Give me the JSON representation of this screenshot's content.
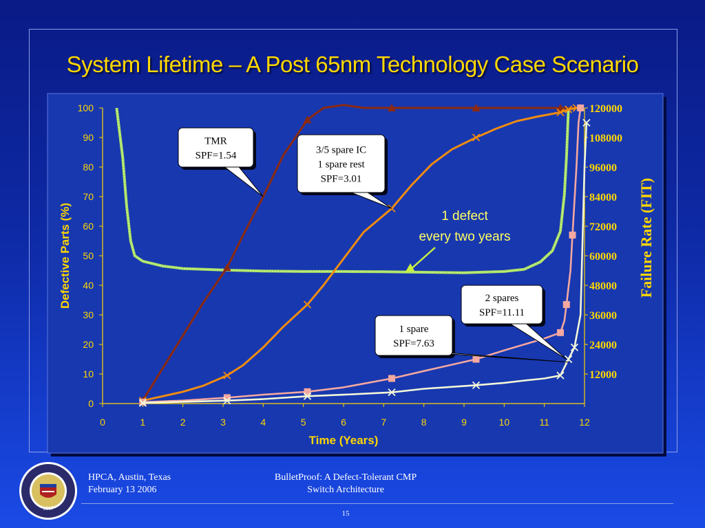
{
  "title": "System Lifetime – A Post 65nm Technology Case Scenario",
  "footer": {
    "left_line1": "HPCA, Austin, Texas",
    "left_line2": "February 13 2006",
    "center_line1": "BulletProof: A Defect-Tolerant CMP",
    "center_line2": "Switch Architecture",
    "page_number": "15"
  },
  "logo": {
    "text": "THE UNIVERSITY OF MICHIGAN",
    "year": "1817"
  },
  "colors": {
    "tmr": "#8b2a10",
    "spare35": "#f08c10",
    "spare2": "#f4a8a0",
    "spare1": "#f4f8d8",
    "failure_rate": "#a8e060",
    "axis_text": "#ffd700",
    "chart_bg": "#1838b0"
  },
  "chart_data": {
    "type": "line",
    "xlabel": "Time (Years)",
    "ylabel": "Defective Parts (%)",
    "y2label": "Failure Rate (FIT)",
    "xlim": [
      0,
      12
    ],
    "ylim": [
      0,
      100
    ],
    "y2lim": [
      0,
      120000
    ],
    "x_ticks": [
      "0",
      "1",
      "2",
      "3",
      "4",
      "5",
      "6",
      "7",
      "8",
      "9",
      "10",
      "11",
      "12"
    ],
    "y_ticks": [
      "0",
      "10",
      "20",
      "30",
      "40",
      "50",
      "60",
      "70",
      "80",
      "90",
      "100"
    ],
    "y2_ticks": [
      "12000",
      "24000",
      "36000",
      "48000",
      "60000",
      "72000",
      "84000",
      "96000",
      "108000",
      "120000"
    ],
    "series": [
      {
        "name": "TMR",
        "marker": "triangle",
        "points": [
          [
            1.0,
            1
          ],
          [
            1.5,
            12
          ],
          [
            2.0,
            23
          ],
          [
            2.5,
            34
          ],
          [
            3.1,
            46
          ],
          [
            3.5,
            57
          ],
          [
            4.0,
            70
          ],
          [
            4.5,
            84
          ],
          [
            5.1,
            96
          ],
          [
            5.5,
            100
          ],
          [
            6.0,
            101
          ],
          [
            6.5,
            100
          ],
          [
            7.2,
            100
          ],
          [
            8,
            100
          ],
          [
            9.3,
            100
          ],
          [
            10,
            100
          ],
          [
            11.4,
            100
          ],
          [
            11.8,
            100
          ]
        ],
        "marker_x": [
          1.0,
          3.1,
          5.1,
          7.2,
          9.3,
          11.4
        ]
      },
      {
        "name": "3/5 spare IC, 1 spare rest",
        "marker": "x",
        "points": [
          [
            1.0,
            1
          ],
          [
            1.5,
            2.5
          ],
          [
            2.0,
            4
          ],
          [
            2.5,
            6
          ],
          [
            3.1,
            9.5
          ],
          [
            3.5,
            13
          ],
          [
            4.0,
            19
          ],
          [
            4.5,
            26
          ],
          [
            5.1,
            33.5
          ],
          [
            5.5,
            40
          ],
          [
            6.0,
            49
          ],
          [
            6.5,
            58
          ],
          [
            7.2,
            66
          ],
          [
            7.7,
            74
          ],
          [
            8.2,
            81
          ],
          [
            8.7,
            86
          ],
          [
            9.3,
            90
          ],
          [
            9.8,
            93
          ],
          [
            10.3,
            95.5
          ],
          [
            10.8,
            97
          ],
          [
            11.4,
            98.5
          ],
          [
            11.6,
            99.5
          ],
          [
            11.8,
            100
          ]
        ],
        "marker_x": [
          1.0,
          3.1,
          5.1,
          7.2,
          9.3,
          11.4,
          11.6,
          11.8
        ]
      },
      {
        "name": "2 spares",
        "marker": "square",
        "points": [
          [
            1.0,
            0.5
          ],
          [
            2.0,
            1
          ],
          [
            3.1,
            2
          ],
          [
            4.0,
            3
          ],
          [
            5.1,
            4
          ],
          [
            6.0,
            5.5
          ],
          [
            7.2,
            8.5
          ],
          [
            8.0,
            11
          ],
          [
            9.3,
            15
          ],
          [
            10.0,
            18
          ],
          [
            11.0,
            22
          ],
          [
            11.4,
            24
          ],
          [
            11.5,
            28
          ],
          [
            11.55,
            33.5
          ],
          [
            11.65,
            45
          ],
          [
            11.7,
            57
          ],
          [
            11.8,
            80
          ],
          [
            11.85,
            95
          ],
          [
            11.9,
            100
          ]
        ],
        "marker_x": [
          1.0,
          3.1,
          5.1,
          7.2,
          9.3,
          11.4,
          11.55,
          11.7,
          11.9
        ]
      },
      {
        "name": "1 spare",
        "marker": "x",
        "points": [
          [
            1.0,
            0.2
          ],
          [
            2.0,
            0.6
          ],
          [
            3.1,
            1
          ],
          [
            4.0,
            1.5
          ],
          [
            5.1,
            2.5
          ],
          [
            6.0,
            3
          ],
          [
            7.2,
            3.8
          ],
          [
            8.0,
            5
          ],
          [
            9.3,
            6.2
          ],
          [
            10.0,
            7
          ],
          [
            10.5,
            7.8
          ],
          [
            11.0,
            8.5
          ],
          [
            11.4,
            9.5
          ],
          [
            11.6,
            15
          ],
          [
            11.75,
            19
          ],
          [
            11.9,
            30
          ],
          [
            12.0,
            80
          ],
          [
            12.05,
            95
          ]
        ],
        "marker_x": [
          1.0,
          3.1,
          5.1,
          7.2,
          9.3,
          11.4,
          11.6,
          11.75,
          12.05
        ]
      },
      {
        "name": "failure rate",
        "axis": "y2",
        "points": [
          [
            0.35,
            120000
          ],
          [
            0.5,
            100000
          ],
          [
            0.6,
            80000
          ],
          [
            0.7,
            66000
          ],
          [
            0.8,
            60000
          ],
          [
            1,
            57800
          ],
          [
            1.5,
            55800
          ],
          [
            2,
            54800
          ],
          [
            3,
            54200
          ],
          [
            4,
            53800
          ],
          [
            5,
            53600
          ],
          [
            6,
            53600
          ],
          [
            7,
            53500
          ],
          [
            8,
            53300
          ],
          [
            9,
            53100
          ],
          [
            10,
            53600
          ],
          [
            10.5,
            54500
          ],
          [
            10.9,
            57500
          ],
          [
            11.2,
            62000
          ],
          [
            11.4,
            70000
          ],
          [
            11.5,
            85000
          ],
          [
            11.55,
            100000
          ],
          [
            11.6,
            120000
          ]
        ]
      }
    ],
    "annotations": [
      {
        "lines": [
          "TMR",
          "SPF=1.54"
        ]
      },
      {
        "lines": [
          "3/5 spare IC",
          "1 spare rest",
          "SPF=3.01"
        ]
      },
      {
        "lines": [
          "2 spares",
          "SPF=11.11"
        ]
      },
      {
        "lines": [
          "1 spare",
          "SPF=7.63"
        ]
      },
      {
        "lines": [
          "1 defect",
          "every two years"
        ]
      }
    ]
  }
}
